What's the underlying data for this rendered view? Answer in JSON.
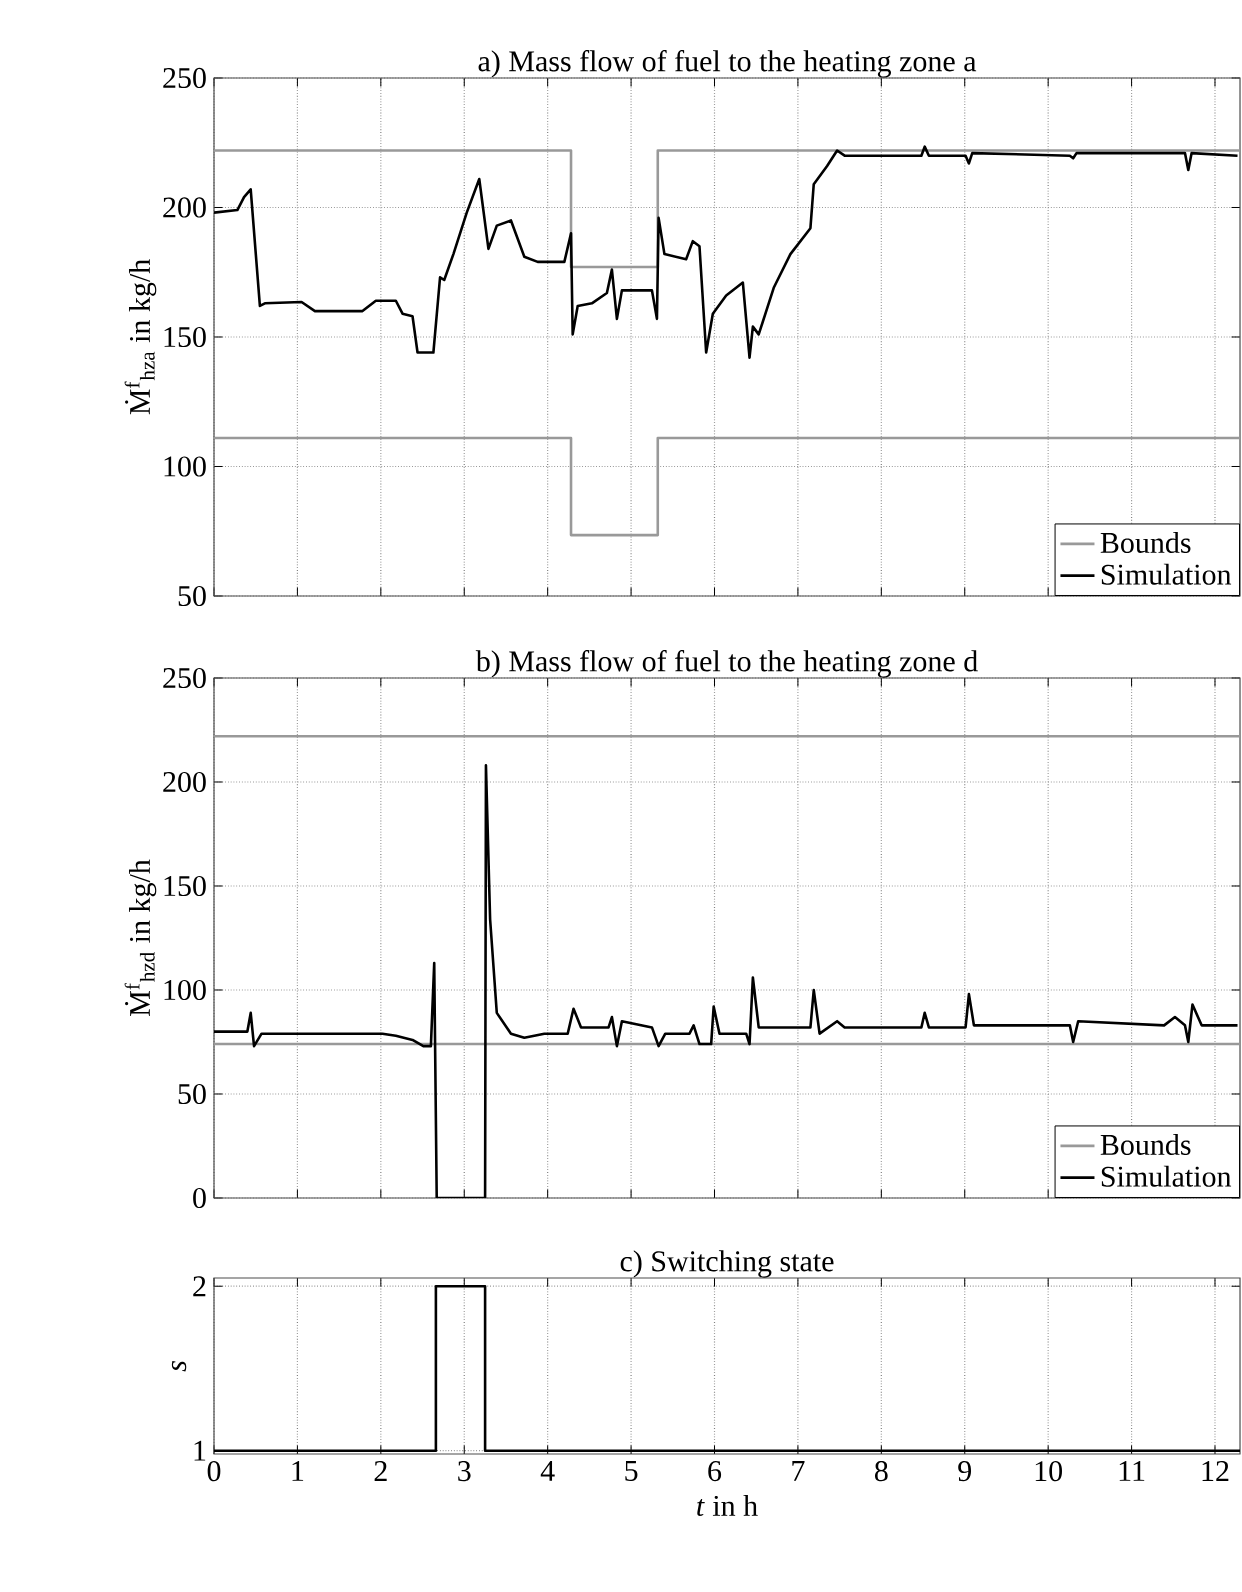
{
  "chart_data": [
    {
      "type": "line",
      "title": "a) Mass flow of fuel to the heating zone a",
      "ylabel": "Ṁ$^{f}$$_{hza}$ in kg/h",
      "xlim": [
        0,
        12.3
      ],
      "ylim": [
        50,
        250
      ],
      "xticks": [
        0,
        1,
        2,
        3,
        4,
        5,
        6,
        7,
        8,
        9,
        10,
        11,
        12
      ],
      "yticks": [
        50,
        100,
        150,
        200,
        250
      ],
      "grid": true,
      "legend": "bottom right",
      "tick_labels": "y",
      "series": [
        {
          "name": "Bounds",
          "color": "#999999",
          "x": [
            0,
            4.28,
            4.28,
            5.32,
            5.32,
            12.3
          ],
          "values": [
            222,
            222,
            177,
            177,
            222,
            222
          ]
        },
        {
          "color": "#999999",
          "x": [
            0,
            4.28,
            4.28,
            5.32,
            5.32,
            12.3
          ],
          "values": [
            111,
            111,
            73.5,
            73.5,
            111,
            111
          ]
        },
        {
          "name": "Simulation",
          "color": "#000000",
          "x": [
            0,
            0.28,
            0.36,
            0.44,
            0.55,
            0.61,
            1.05,
            1.21,
            1.78,
            1.94,
            2.18,
            2.26,
            2.38,
            2.44,
            2.63,
            2.71,
            2.76,
            2.87,
            3.03,
            3.18,
            3.29,
            3.39,
            3.56,
            3.72,
            3.88,
            4.2,
            4.28,
            4.3,
            4.36,
            4.53,
            4.71,
            4.77,
            4.83,
            4.89,
            5.25,
            5.31,
            5.33,
            5.4,
            5.66,
            5.74,
            5.82,
            5.9,
            5.98,
            6.14,
            6.34,
            6.42,
            6.46,
            6.53,
            6.71,
            6.91,
            7.15,
            7.19,
            7.35,
            7.47,
            7.56,
            8.48,
            8.52,
            8.57,
            9.01,
            9.05,
            9.09,
            10.26,
            10.3,
            10.34,
            11.64,
            11.68,
            11.72,
            12.27
          ],
          "values": [
            198,
            199,
            204,
            207,
            162,
            163,
            163.5,
            160,
            160,
            164,
            164,
            159,
            158,
            144,
            144,
            173,
            172,
            182,
            198,
            211,
            184,
            193,
            195,
            181,
            179,
            179,
            190,
            151,
            162,
            163,
            167,
            176,
            157,
            168,
            168,
            157,
            196,
            182,
            180,
            187,
            185,
            144,
            159,
            166,
            171,
            142,
            154,
            151,
            169,
            182,
            192,
            209,
            216,
            222,
            220,
            220,
            223.5,
            220,
            220,
            217,
            221,
            220,
            219,
            221,
            221,
            214.5,
            221,
            220
          ]
        }
      ]
    },
    {
      "type": "line",
      "title": "b) Mass flow of fuel to the heating zone d",
      "ylabel": "Ṁ$^{f}$$_{hzd}$ in kg/h",
      "xlim": [
        0,
        12.3
      ],
      "ylim": [
        0,
        250
      ],
      "xticks": [
        0,
        1,
        2,
        3,
        4,
        5,
        6,
        7,
        8,
        9,
        10,
        11,
        12
      ],
      "yticks": [
        0,
        50,
        100,
        150,
        200,
        250
      ],
      "grid": true,
      "legend": "bottom right",
      "tick_labels": "y",
      "series": [
        {
          "name": "Bounds",
          "color": "#999999",
          "x": [
            0,
            12.3
          ],
          "values": [
            222,
            222
          ]
        },
        {
          "color": "#999999",
          "x": [
            0,
            12.3
          ],
          "values": [
            74,
            74
          ]
        },
        {
          "name": "Simulation",
          "color": "#000000",
          "x": [
            0,
            0.4,
            0.44,
            0.48,
            0.57,
            2.02,
            2.18,
            2.38,
            2.51,
            2.6,
            2.64,
            2.67,
            3.25,
            3.26,
            3.31,
            3.39,
            3.56,
            3.72,
            3.96,
            4.24,
            4.31,
            4.4,
            4.73,
            4.77,
            4.83,
            4.89,
            5.25,
            5.33,
            5.41,
            5.7,
            5.75,
            5.82,
            5.96,
            5.99,
            6.06,
            6.38,
            6.42,
            6.46,
            6.53,
            7.15,
            7.19,
            7.26,
            7.47,
            7.56,
            8.48,
            8.52,
            8.57,
            9.01,
            9.05,
            9.11,
            10.26,
            10.3,
            10.36,
            11.39,
            11.52,
            11.64,
            11.68,
            11.73,
            11.84,
            12.27
          ],
          "values": [
            80,
            80,
            89,
            73,
            79,
            79,
            78,
            76,
            73,
            73,
            113,
            0,
            0,
            208,
            134,
            89,
            79,
            77,
            79,
            79,
            91,
            82,
            82,
            87,
            73,
            85,
            82,
            73,
            79,
            79,
            83,
            74,
            74,
            92,
            79,
            79,
            74,
            106,
            82,
            82,
            100,
            79,
            85,
            82,
            82,
            89,
            82,
            82,
            98,
            83,
            83,
            75,
            85,
            83,
            87,
            83,
            75,
            93,
            83,
            83
          ]
        }
      ]
    },
    {
      "type": "line",
      "title": "c) Switching state",
      "ylabel": "*s*",
      "xlabel": "*t* in h",
      "xlim": [
        0,
        12.3
      ],
      "ylim": [
        0.98,
        2.05
      ],
      "xticks": [
        0,
        1,
        2,
        3,
        4,
        5,
        6,
        7,
        8,
        9,
        10,
        11,
        12
      ],
      "yticks": [
        1,
        2
      ],
      "grid": true,
      "series": [
        {
          "color": "#000000",
          "x": [
            0,
            2.66,
            2.66,
            3.25,
            3.25,
            12.3
          ],
          "values": [
            1,
            1,
            2,
            2,
            1,
            1
          ]
        }
      ]
    }
  ]
}
